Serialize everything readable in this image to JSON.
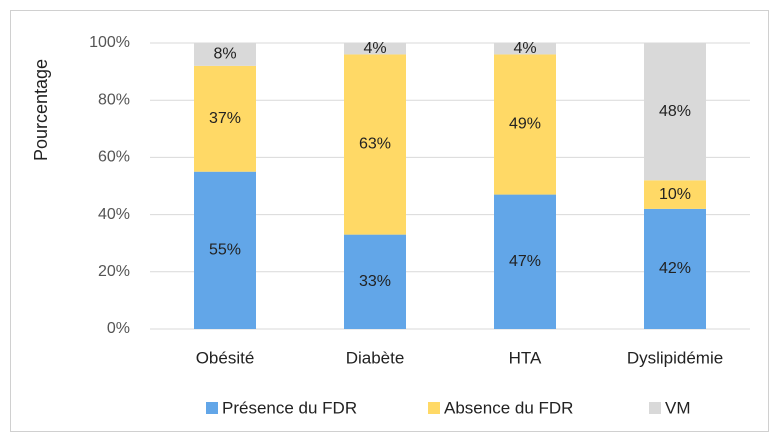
{
  "chart_data": {
    "type": "stacked_bar",
    "ylabel": "Pourcentage",
    "categories": [
      "Obésité",
      "Diabète",
      "HTA",
      "Dyslipidémie"
    ],
    "series": [
      {
        "name": "Présence du FDR",
        "color": "#62a6e8",
        "values": [
          55,
          33,
          47,
          42
        ],
        "value_labels": [
          "55%",
          "33%",
          "47%",
          "42%"
        ]
      },
      {
        "name": "Absence du FDR",
        "color": "#ffd966",
        "values": [
          37,
          63,
          49,
          10
        ],
        "value_labels": [
          "37%",
          "63%",
          "49%",
          "10%"
        ]
      },
      {
        "name": "VM",
        "color": "#d9d9d9",
        "values": [
          8,
          4,
          4,
          48
        ],
        "value_labels": [
          "8%",
          "4%",
          "4%",
          "48%"
        ]
      }
    ],
    "ylim": [
      0,
      100
    ],
    "yticks": [
      {
        "value": 0,
        "label": "0%"
      },
      {
        "value": 20,
        "label": "20%"
      },
      {
        "value": 40,
        "label": "40%"
      },
      {
        "value": 60,
        "label": "60%"
      },
      {
        "value": 80,
        "label": "80%"
      },
      {
        "value": 100,
        "label": "100%"
      }
    ],
    "grid": true,
    "legend": "bottom"
  }
}
